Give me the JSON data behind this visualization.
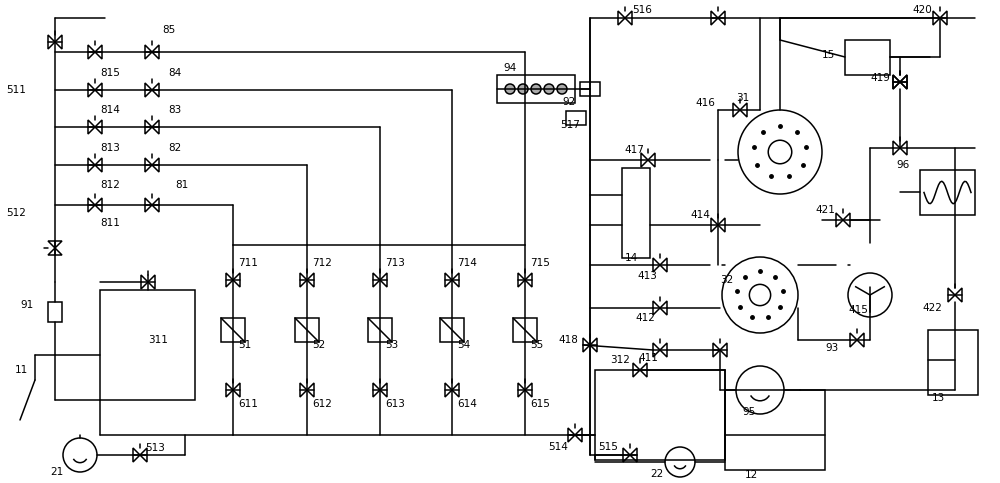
{
  "bg": "#ffffff",
  "lc": "#000000",
  "lw": 1.1,
  "figsize": [
    10.0,
    4.83
  ],
  "dpi": 100,
  "valve_s": 7,
  "valve_s_sm": 6
}
